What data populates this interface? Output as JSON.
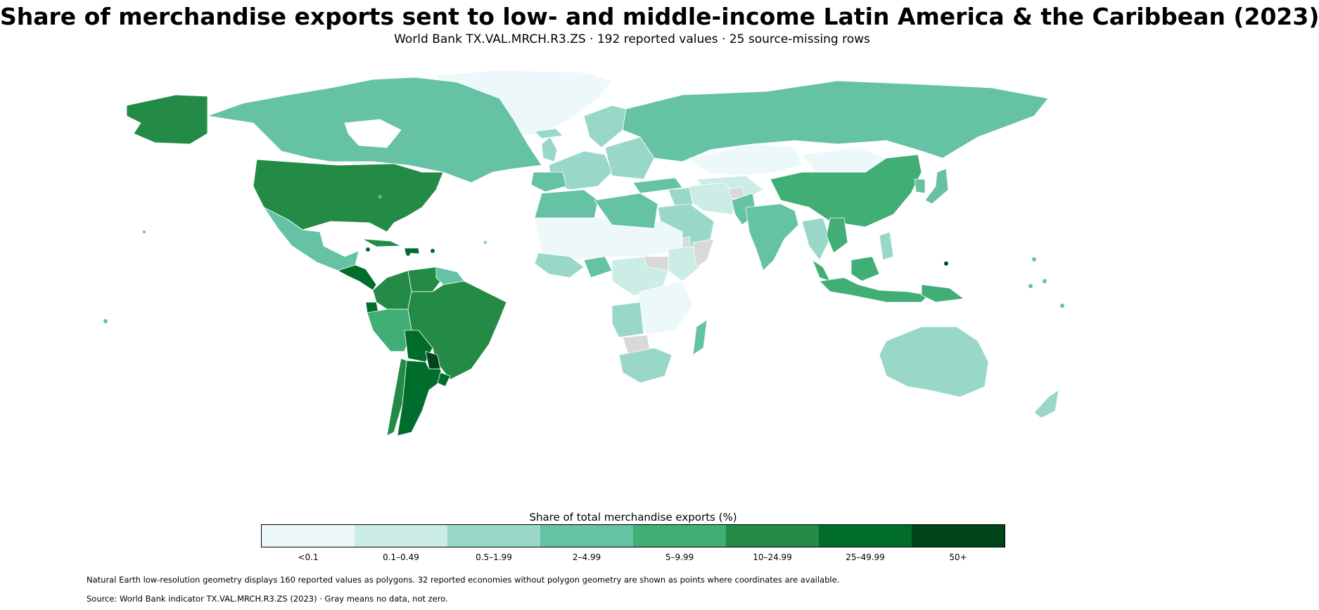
{
  "title": "Share of merchandise exports sent to low- and middle-income Latin America & the Caribbean (2023)",
  "subtitle": "World Bank TX.VAL.MRCH.R3.ZS · 192 reported values · 25 source-missing rows",
  "colors": {
    "bins": [
      "#edf8fb",
      "#ccece6",
      "#99d8c9",
      "#66c2a4",
      "#41ae76",
      "#238b45",
      "#006d2c",
      "#00441b"
    ],
    "no_data": "#d9d9d9",
    "border": "#ffffff"
  },
  "legend": {
    "title": "Share of total merchandise exports (%)",
    "labels": [
      "<0.1",
      "0.1–0.49",
      "0.5–1.99",
      "2–4.99",
      "5–9.99",
      "10–24.99",
      "25–49.99",
      "50+"
    ]
  },
  "notes": {
    "geometry": "Natural Earth low-resolution geometry displays 160 reported values as polygons. 32 reported economies without polygon geometry are shown as points where coordinates are available.",
    "source": "Source: World Bank indicator TX.VAL.MRCH.R3.ZS (2023) · Gray means no data, not zero."
  }
}
